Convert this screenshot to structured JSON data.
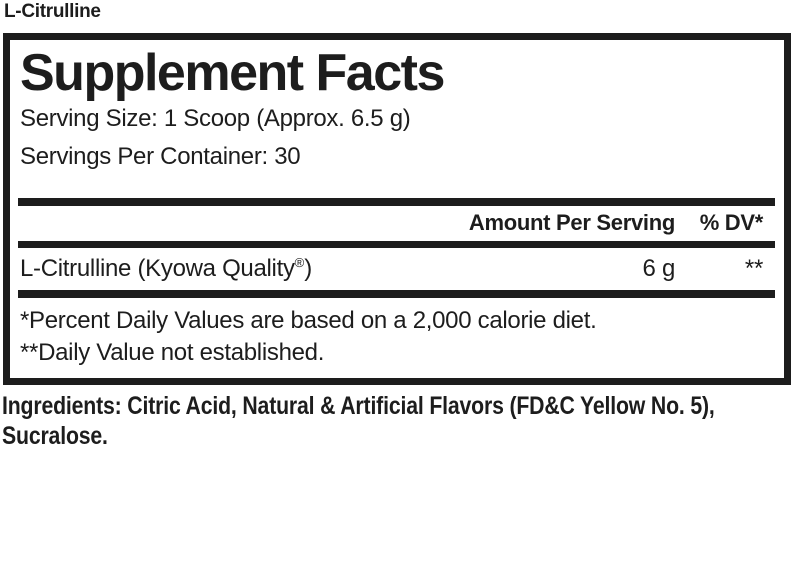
{
  "product_label": "L-Citrulline",
  "panel": {
    "title": "Supplement Facts",
    "serving_size": "Serving Size: 1 Scoop (Approx. 6.5 g)",
    "servings_per_container": "Servings Per Container: 30",
    "columns": {
      "amount": "Amount Per Serving",
      "dv": "% DV*"
    },
    "rows": [
      {
        "name_main": "L-Citrulline (Kyowa Quality",
        "name_reg": "®",
        "name_close": ")",
        "amount": "6 g",
        "dv": "**"
      }
    ],
    "footnotes": [
      "*Percent Daily Values are based on a 2,000 calorie diet.",
      "**Daily Value not established."
    ]
  },
  "ingredients": {
    "lines": [
      "Ingredients: Citric Acid, Natural & Artificial Flavors (FD&C Yellow No. 5),",
      "Sucralose."
    ]
  },
  "colors": {
    "ink": "#1d1d1d",
    "background": "#ffffff"
  }
}
